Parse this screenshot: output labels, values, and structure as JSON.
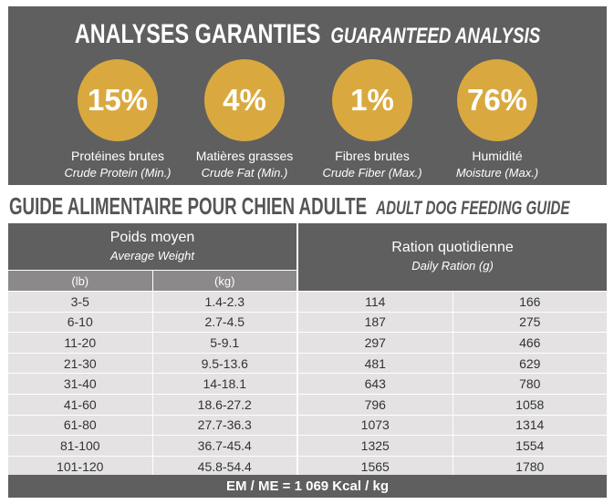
{
  "analysis": {
    "title_fr": "ANALYSES GARANTIES",
    "title_en": "GUARANTEED ANALYSIS",
    "accent_color": "#d9a93f",
    "items": [
      {
        "value": "15%",
        "label_fr": "Protéines brutes",
        "label_en": "Crude Protein (Min.)"
      },
      {
        "value": "4%",
        "label_fr": "Matières grasses",
        "label_en": "Crude Fat (Min.)"
      },
      {
        "value": "1%",
        "label_fr": "Fibres brutes",
        "label_en": "Crude Fiber (Max.)"
      },
      {
        "value": "76%",
        "label_fr": "Humidité",
        "label_en": "Moisture (Max.)"
      }
    ]
  },
  "guide": {
    "title_fr": "GUIDE ALIMENTAIRE POUR CHIEN ADULTE",
    "title_en": "ADULT DOG FEEDING GUIDE",
    "weight_fr": "Poids moyen",
    "weight_en": "Average Weight",
    "ration_fr": "Ration quotidienne",
    "ration_en": "Daily Ration (g)",
    "unit_lb": "(lb)",
    "unit_kg": "(kg)",
    "rows": [
      [
        "3-5",
        "1.4-2.3",
        "114",
        "166"
      ],
      [
        "6-10",
        "2.7-4.5",
        "187",
        "275"
      ],
      [
        "11-20",
        "5-9.1",
        "297",
        "466"
      ],
      [
        "21-30",
        "9.5-13.6",
        "481",
        "629"
      ],
      [
        "31-40",
        "14-18.1",
        "643",
        "780"
      ],
      [
        "41-60",
        "18.6-27.2",
        "796",
        "1058"
      ],
      [
        "61-80",
        "27.7-36.3",
        "1073",
        "1314"
      ],
      [
        "81-100",
        "36.7-45.4",
        "1325",
        "1554"
      ],
      [
        "101-120",
        "45.8-54.4",
        "1565",
        "1780"
      ]
    ],
    "footer": "EM / ME = 1 069 Kcal / kg"
  }
}
